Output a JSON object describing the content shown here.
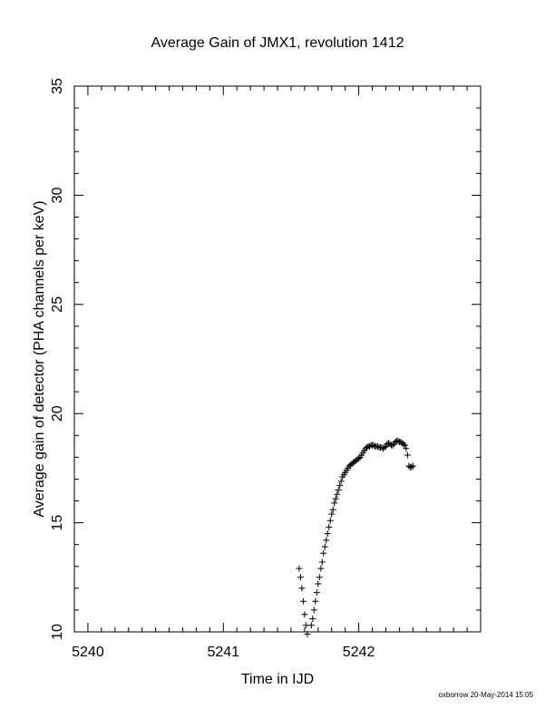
{
  "chart_data": {
    "type": "scatter",
    "title": "Average Gain of JMX1, revolution 1412",
    "xlabel": "Time in IJD",
    "ylabel": "Average gain of detector (PHA channels per keV)",
    "xlim": [
      5239.9,
      5242.9
    ],
    "ylim": [
      10,
      35
    ],
    "xticks": [
      5240,
      5241,
      5242
    ],
    "yticks": [
      10,
      15,
      20,
      25,
      30,
      35
    ],
    "marker": "plus",
    "grid": false,
    "legend": "none",
    "series": [
      {
        "points": [
          [
            5241.56,
            12.9
          ],
          [
            5241.57,
            12.5
          ],
          [
            5241.58,
            12.0
          ],
          [
            5241.59,
            11.4
          ],
          [
            5241.6,
            10.8
          ],
          [
            5241.61,
            10.3
          ],
          [
            5241.62,
            9.9
          ],
          [
            5241.65,
            10.3
          ],
          [
            5241.66,
            10.6
          ],
          [
            5241.67,
            11.0
          ],
          [
            5241.68,
            11.4
          ],
          [
            5241.69,
            11.8
          ],
          [
            5241.7,
            12.2
          ],
          [
            5241.71,
            12.5
          ],
          [
            5241.72,
            12.9
          ],
          [
            5241.73,
            13.2
          ],
          [
            5241.74,
            13.6
          ],
          [
            5241.75,
            13.9
          ],
          [
            5241.76,
            14.2
          ],
          [
            5241.77,
            14.5
          ],
          [
            5241.78,
            14.8
          ],
          [
            5241.79,
            15.1
          ],
          [
            5241.8,
            15.4
          ],
          [
            5241.81,
            15.6
          ],
          [
            5241.82,
            15.9
          ],
          [
            5241.83,
            16.1
          ],
          [
            5241.84,
            16.3
          ],
          [
            5241.85,
            16.5
          ],
          [
            5241.86,
            16.7
          ],
          [
            5241.87,
            16.9
          ],
          [
            5241.88,
            17.1
          ],
          [
            5241.89,
            17.2
          ],
          [
            5241.9,
            17.3
          ],
          [
            5241.91,
            17.4
          ],
          [
            5241.92,
            17.5
          ],
          [
            5241.93,
            17.6
          ],
          [
            5241.94,
            17.65
          ],
          [
            5241.95,
            17.7
          ],
          [
            5241.96,
            17.75
          ],
          [
            5241.97,
            17.8
          ],
          [
            5241.98,
            17.85
          ],
          [
            5241.99,
            17.9
          ],
          [
            5242.0,
            17.95
          ],
          [
            5242.01,
            18.0
          ],
          [
            5242.02,
            18.1
          ],
          [
            5242.03,
            18.2
          ],
          [
            5242.04,
            18.3
          ],
          [
            5242.05,
            18.4
          ],
          [
            5242.06,
            18.45
          ],
          [
            5242.07,
            18.5
          ],
          [
            5242.08,
            18.5
          ],
          [
            5242.09,
            18.55
          ],
          [
            5242.1,
            18.55
          ],
          [
            5242.11,
            18.55
          ],
          [
            5242.12,
            18.5
          ],
          [
            5242.13,
            18.5
          ],
          [
            5242.14,
            18.5
          ],
          [
            5242.15,
            18.45
          ],
          [
            5242.16,
            18.45
          ],
          [
            5242.17,
            18.45
          ],
          [
            5242.18,
            18.4
          ],
          [
            5242.19,
            18.45
          ],
          [
            5242.2,
            18.5
          ],
          [
            5242.21,
            18.6
          ],
          [
            5242.22,
            18.65
          ],
          [
            5242.23,
            18.6
          ],
          [
            5242.24,
            18.55
          ],
          [
            5242.25,
            18.55
          ],
          [
            5242.26,
            18.6
          ],
          [
            5242.27,
            18.7
          ],
          [
            5242.28,
            18.75
          ],
          [
            5242.29,
            18.75
          ],
          [
            5242.3,
            18.7
          ],
          [
            5242.31,
            18.7
          ],
          [
            5242.32,
            18.65
          ],
          [
            5242.33,
            18.6
          ],
          [
            5242.34,
            18.55
          ],
          [
            5242.35,
            18.4
          ],
          [
            5242.36,
            18.1
          ],
          [
            5242.37,
            17.6
          ],
          [
            5242.38,
            17.55
          ],
          [
            5242.39,
            17.55
          ],
          [
            5242.4,
            17.6
          ]
        ]
      }
    ]
  },
  "footer": {
    "credit": "oxborrow 20-May-2014 15:05"
  }
}
